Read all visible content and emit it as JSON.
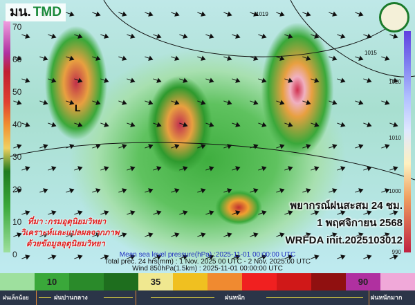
{
  "header": {
    "logo_prefix": "มน.",
    "logo_brand": "TMD"
  },
  "left_scale": {
    "ticks": [
      "70",
      "60",
      "50",
      "40",
      "30",
      "20",
      "10",
      "0"
    ]
  },
  "right_scale": {
    "ticks": [
      "1020",
      "1010",
      "1000",
      "990"
    ]
  },
  "map": {
    "low_label": "L",
    "isobar_labels": [
      "1019",
      "1015"
    ]
  },
  "overlay": {
    "title": "พยากรณ์ฝนสะสม 24 ชม.",
    "date": "1 พฤศจิกายน 2568",
    "model": "WRFDA init.2025103012",
    "source_lines": [
      "ที่มา :กรมอุตุนิยมวิทยา",
      "วิเคราะห์และแปลผลจากภาพ",
      "ด้วยข้อมูลอุตุนิยมวิทยา"
    ]
  },
  "captions": {
    "pressure": "Mean sea level pressure(hPa) :2025-11-01 00:00:00 UTC",
    "precip": "Total prec. 24 hrs(mm) : 1 Nov. 2025 00 UTC - 2 Nov. 2025:00 UTC",
    "wind": "Wind 850hPa(1.5km) : 2025-11-01 00:00:00 UTC"
  },
  "colorbar": {
    "colors": [
      "#9ee09e",
      "#3aa83a",
      "#2a8a2a",
      "#1e6e1e",
      "#f0e890",
      "#f0c020",
      "#f08a30",
      "#f02020",
      "#d01818",
      "#901010",
      "#b030a0",
      "#f0a8d8"
    ],
    "labels": [
      "",
      "10",
      "",
      "",
      "35",
      "",
      "",
      "",
      "",
      "",
      "90",
      ""
    ]
  },
  "legend": {
    "light": "ฝนเล็กน้อย",
    "moderate": "ฝนปานกลาง",
    "heavy": "ฝนหนัก",
    "very_heavy": "ฝนหนักมาก"
  }
}
